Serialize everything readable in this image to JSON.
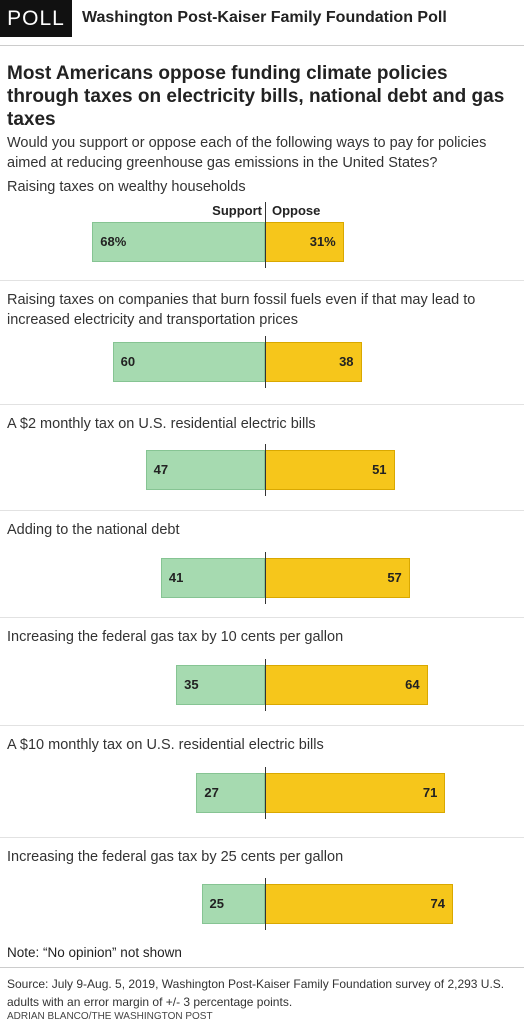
{
  "chart_data": {
    "type": "diverging-bar",
    "badge": "POLL",
    "header": "Washington Post-Kaiser Family Foundation Poll",
    "title": "Most Americans oppose funding climate policies through taxes on electricity bills, national debt and gas taxes",
    "subtitle": "Would you support or oppose each of the following ways to pay for policies aimed at reducing greenhouse gas emissions in the United States?",
    "categories": [
      "Raising taxes on wealthy households",
      "Raising taxes on companies that burn fossil fuels even if that may lead to increased electricity and transportation prices",
      "A $2 monthly tax on U.S. residential electric bills",
      "Adding to the national debt",
      "Increasing the federal gas tax by 10 cents per gallon",
      "A $10 monthly tax on U.S. residential electric bills",
      "Increasing the federal gas tax by 25 cents per gallon"
    ],
    "series": [
      {
        "name": "Support",
        "color": "#a6dab0",
        "values": [
          68,
          60,
          47,
          41,
          35,
          27,
          25
        ],
        "value_labels": [
          "68%",
          "60",
          "47",
          "41",
          "35",
          "27",
          "25"
        ]
      },
      {
        "name": "Oppose",
        "color": "#f6c61b",
        "values": [
          31,
          38,
          51,
          57,
          64,
          71,
          74
        ],
        "value_labels": [
          "31%",
          "38",
          "51",
          "57",
          "64",
          "71",
          "74"
        ]
      }
    ],
    "note": "Note: “No opinion” not shown",
    "source": "Source: July 9-Aug. 5, 2019, Washington Post-Kaiser Family Foundation survey of 2,293 U.S. adults with an error margin of +/- 3 percentage points.",
    "credit": "ADRIAN BLANCO/THE WASHINGTON POST"
  }
}
